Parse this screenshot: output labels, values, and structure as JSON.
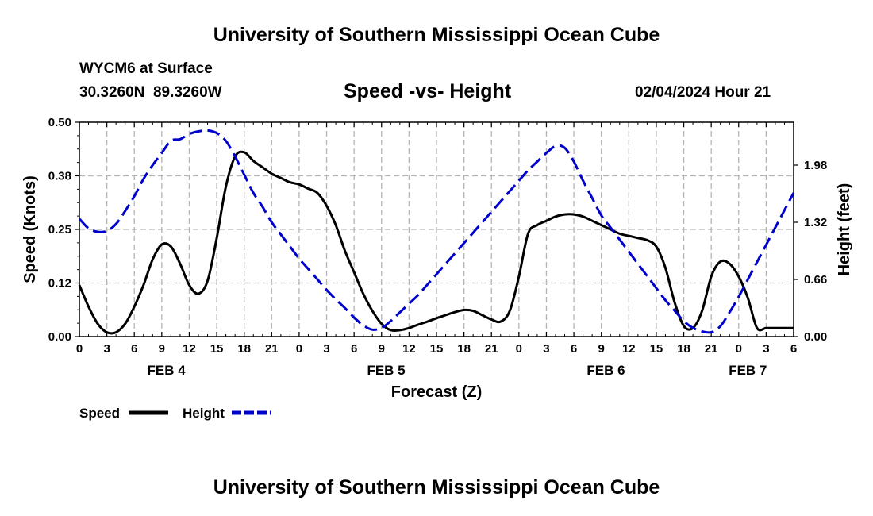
{
  "header": {
    "title": "University of Southern Mississippi Ocean Cube",
    "station": "WYCM6 at Surface",
    "coords": "30.3260N  89.3260W",
    "subtitle": "Speed -vs- Height",
    "datetime": "02/04/2024 Hour 21"
  },
  "footer": {
    "title": "University of Southern Mississippi Ocean Cube"
  },
  "chart_data": {
    "type": "line",
    "title": "Speed -vs- Height",
    "xlabel": "Forecast (Z)",
    "ylabel": "Speed (Knots)",
    "y2label": "Height (feet)",
    "x_unit": "hours from 00Z Feb 4",
    "xlim": [
      0,
      78
    ],
    "ylim": [
      0,
      0.5
    ],
    "y2lim": [
      0,
      2.475
    ],
    "y_ticks": [
      "0.00",
      "0.12",
      "0.25",
      "0.38",
      "0.50"
    ],
    "y2_ticks": [
      "0.00",
      "0.66",
      "1.32",
      "1.98"
    ],
    "y2_tick_values": [
      0,
      0.66,
      1.32,
      1.98
    ],
    "x_tick_labels": [
      "0",
      "3",
      "6",
      "9",
      "12",
      "15",
      "18",
      "21",
      "0",
      "3",
      "6",
      "9",
      "12",
      "15",
      "18",
      "21",
      "0",
      "3",
      "6",
      "9",
      "12",
      "15",
      "18",
      "21",
      "0",
      "3",
      "6"
    ],
    "day_labels": [
      {
        "label": "FEB 4",
        "hour": 9.5
      },
      {
        "label": "FEB 5",
        "hour": 33.5
      },
      {
        "label": "FEB 6",
        "hour": 57.5
      },
      {
        "label": "FEB 7",
        "hour": 73
      }
    ],
    "grid": true,
    "legend": "bottom-left",
    "series": [
      {
        "name": "Speed",
        "axis": "left",
        "color": "#000000",
        "style": "solid",
        "x": [
          0,
          1,
          2,
          3,
          4,
          5,
          6,
          7,
          8,
          9,
          10,
          11,
          12,
          13,
          14,
          15,
          16,
          17,
          18,
          19,
          20,
          21,
          22,
          23,
          24,
          25,
          26,
          27,
          28,
          29,
          30,
          31,
          32,
          33,
          34,
          35,
          36,
          37,
          38,
          39,
          40,
          41,
          42,
          43,
          44,
          45,
          46,
          47,
          48,
          49,
          50,
          51,
          52,
          53,
          54,
          55,
          56,
          57,
          58,
          59,
          60,
          61,
          62,
          63,
          64,
          65,
          66,
          67,
          68,
          69,
          70,
          71,
          72,
          73,
          74,
          75,
          76,
          77,
          78
        ],
        "values": [
          0.12,
          0.07,
          0.03,
          0.01,
          0.01,
          0.03,
          0.07,
          0.12,
          0.18,
          0.215,
          0.21,
          0.17,
          0.12,
          0.1,
          0.13,
          0.23,
          0.35,
          0.42,
          0.43,
          0.41,
          0.395,
          0.38,
          0.37,
          0.36,
          0.355,
          0.345,
          0.335,
          0.305,
          0.26,
          0.2,
          0.15,
          0.1,
          0.06,
          0.03,
          0.015,
          0.015,
          0.02,
          0.028,
          0.035,
          0.043,
          0.05,
          0.057,
          0.062,
          0.06,
          0.05,
          0.04,
          0.035,
          0.06,
          0.14,
          0.24,
          0.26,
          0.27,
          0.28,
          0.285,
          0.285,
          0.28,
          0.27,
          0.26,
          0.25,
          0.24,
          0.235,
          0.23,
          0.225,
          0.21,
          0.16,
          0.08,
          0.025,
          0.02,
          0.06,
          0.14,
          0.175,
          0.17,
          0.14,
          0.09,
          0.02,
          0.02,
          0.02,
          0.02,
          0.02
        ]
      },
      {
        "name": "Height",
        "axis": "right",
        "color": "#0000cc",
        "style": "dashed",
        "x": [
          0,
          1,
          2,
          3,
          4,
          5,
          6,
          7,
          8,
          9,
          10,
          11,
          12,
          13,
          14,
          15,
          16,
          17,
          18,
          19,
          20,
          21,
          22,
          23,
          24,
          25,
          26,
          27,
          28,
          29,
          30,
          31,
          32,
          33,
          34,
          35,
          36,
          37,
          38,
          39,
          40,
          41,
          42,
          43,
          44,
          45,
          46,
          47,
          48,
          49,
          50,
          51,
          52,
          53,
          54,
          55,
          56,
          57,
          58,
          59,
          60,
          61,
          62,
          63,
          64,
          65,
          66,
          67,
          68,
          69,
          70,
          71,
          72,
          73,
          74,
          75,
          76,
          77,
          78
        ],
        "values": [
          1.36,
          1.25,
          1.21,
          1.22,
          1.3,
          1.45,
          1.62,
          1.82,
          1.98,
          2.12,
          2.26,
          2.28,
          2.34,
          2.37,
          2.38,
          2.35,
          2.26,
          2.08,
          1.87,
          1.66,
          1.5,
          1.32,
          1.18,
          1.04,
          0.9,
          0.78,
          0.66,
          0.54,
          0.43,
          0.33,
          0.22,
          0.13,
          0.08,
          0.1,
          0.18,
          0.28,
          0.38,
          0.48,
          0.6,
          0.72,
          0.84,
          0.96,
          1.08,
          1.2,
          1.32,
          1.44,
          1.56,
          1.68,
          1.8,
          1.92,
          2.02,
          2.12,
          2.2,
          2.18,
          2.02,
          1.8,
          1.6,
          1.4,
          1.26,
          1.12,
          0.98,
          0.84,
          0.7,
          0.56,
          0.42,
          0.3,
          0.18,
          0.1,
          0.06,
          0.05,
          0.12,
          0.28,
          0.46,
          0.66,
          0.86,
          1.06,
          1.26,
          1.46,
          1.66
        ]
      }
    ]
  }
}
